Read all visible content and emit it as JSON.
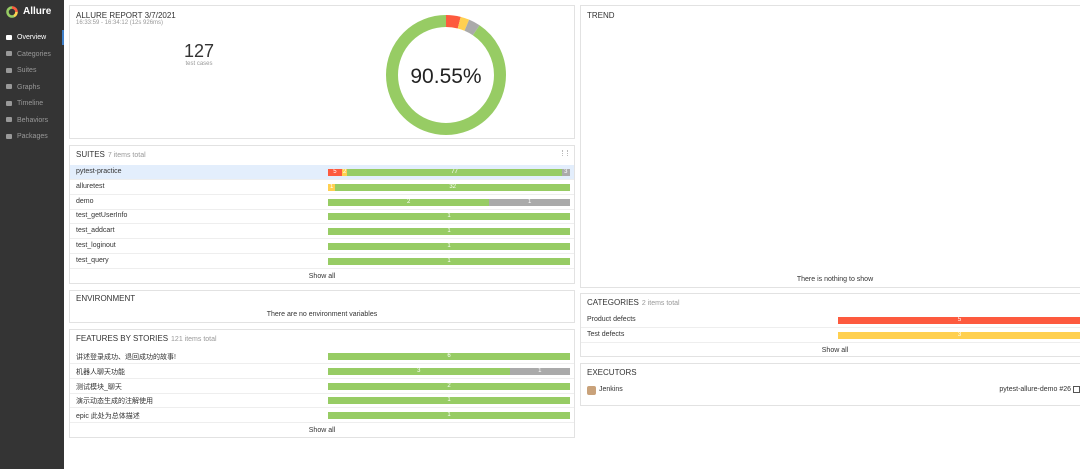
{
  "sidebar": {
    "brand": "Allure",
    "menu": [
      "Overview",
      "Categories",
      "Suites",
      "Graphs",
      "Timeline",
      "Behaviors",
      "Packages"
    ]
  },
  "status_colors": {
    "failed": "#fd5a3e",
    "broken": "#ffd050",
    "passed": "#97cc64",
    "skipped": "#aaaaaa"
  },
  "summary": {
    "title": "ALLURE REPORT 3/7/2021",
    "time": "16:33:59 - 16:34:12 (12s 926ms)",
    "test_cases": 127,
    "test_cases_label": "test cases",
    "percent": "90.55%",
    "statistic": [
      {
        "status": "failed",
        "value": 5
      },
      {
        "status": "broken",
        "value": 3
      },
      {
        "status": "skipped",
        "value": 4
      },
      {
        "status": "passed",
        "value": 115
      }
    ]
  },
  "suites": {
    "title": "SUITES",
    "total": "7 items total",
    "rows": [
      {
        "name": "pytest-practice",
        "segments": [
          {
            "status": "failed",
            "value": 5
          },
          {
            "status": "broken",
            "value": 2
          },
          {
            "status": "passed",
            "value": 77
          },
          {
            "status": "skipped",
            "value": 3
          }
        ]
      },
      {
        "name": "alluretest",
        "segments": [
          {
            "status": "broken",
            "value": 1
          },
          {
            "status": "passed",
            "value": 32
          }
        ]
      },
      {
        "name": "demo",
        "segments": [
          {
            "status": "passed",
            "value": 2
          },
          {
            "status": "skipped",
            "value": 1
          }
        ]
      },
      {
        "name": "test_getUserInfo",
        "segments": [
          {
            "status": "passed",
            "value": 1
          }
        ]
      },
      {
        "name": "test_addcart",
        "segments": [
          {
            "status": "passed",
            "value": 1
          }
        ]
      },
      {
        "name": "test_loginout",
        "segments": [
          {
            "status": "passed",
            "value": 1
          }
        ]
      },
      {
        "name": "test_query",
        "segments": [
          {
            "status": "passed",
            "value": 1
          }
        ]
      }
    ],
    "show_all": "Show all"
  },
  "environment": {
    "title": "ENVIRONMENT",
    "empty": "There are no environment variables"
  },
  "features": {
    "title": "FEATURES BY STORIES",
    "total": "121 items total",
    "rows": [
      {
        "name": "讲述登录成功、退回成功的故事!",
        "segments": [
          {
            "status": "passed",
            "value": 6
          }
        ]
      },
      {
        "name": "机器人聊天功能",
        "segments": [
          {
            "status": "passed",
            "value": 3
          },
          {
            "status": "skipped",
            "value": 1
          }
        ]
      },
      {
        "name": "测试模块_聊天",
        "segments": [
          {
            "status": "passed",
            "value": 2
          }
        ]
      },
      {
        "name": "演示动态生成的注解使用",
        "segments": [
          {
            "status": "passed",
            "value": 1
          }
        ]
      },
      {
        "name": "epic 此处为总体描述",
        "segments": [
          {
            "status": "passed",
            "value": 1
          }
        ]
      }
    ],
    "show_all": "Show all"
  },
  "trend": {
    "title": "TREND",
    "empty": "There is nothing to show"
  },
  "categories": {
    "title": "CATEGORIES",
    "total": "2 items total",
    "rows": [
      {
        "name": "Product defects",
        "segments": [
          {
            "status": "failed",
            "value": 5
          }
        ]
      },
      {
        "name": "Test defects",
        "segments": [
          {
            "status": "broken",
            "value": 3
          }
        ]
      }
    ],
    "show_all": "Show all"
  },
  "executors": {
    "title": "EXECUTORS",
    "name": "Jenkins",
    "build": "pytest-allure-demo #26"
  }
}
